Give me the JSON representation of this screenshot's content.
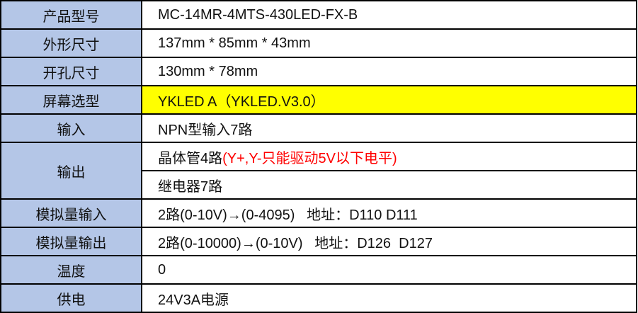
{
  "colors": {
    "label_bg": "#b4c6e7",
    "highlight": "#ffff00",
    "warning_text": "#ff0000"
  },
  "rows": [
    {
      "label": "产品型号",
      "value": "MC-14MR-4MTS-430LED-FX-B"
    },
    {
      "label": "外形尺寸",
      "value": "137mm * 85mm * 43mm"
    },
    {
      "label": "开孔尺寸",
      "value": "130mm * 78mm"
    },
    {
      "label": "屏幕选型",
      "value": "YKLED A（YKLED.V3.0）"
    },
    {
      "label": "输入",
      "value": "NPN型输入7路"
    },
    {
      "label": "输出",
      "value": "晶体管4路",
      "note": "(Y+,Y-只能驱动5V以下电平)",
      "value2": "继电器7路"
    },
    {
      "label": "模拟量输入",
      "value": "2路(0-10V)→(0-4095)   地址：D110 D111"
    },
    {
      "label": "模拟量输出",
      "value": "2路(0-10000)→(0-10V)   地址：D126  D127"
    },
    {
      "label": "温度",
      "value": "0"
    },
    {
      "label": "供电",
      "value": "24V3A电源"
    }
  ]
}
